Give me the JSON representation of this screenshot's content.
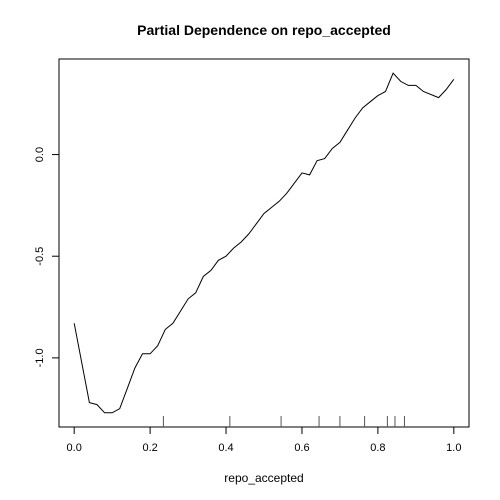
{
  "chart_data": {
    "type": "line",
    "title": "Partial Dependence on repo_accepted",
    "xlabel": "repo_accepted",
    "ylabel": "",
    "xlim": [
      -0.04,
      1.04
    ],
    "ylim": [
      -1.34,
      0.47
    ],
    "x_ticks": [
      "0.0",
      "0.2",
      "0.4",
      "0.6",
      "0.8",
      "1.0"
    ],
    "y_ticks": [
      "-1.0",
      "-0.5",
      "0.0"
    ],
    "x_tick_values": [
      0.0,
      0.2,
      0.4,
      0.6,
      0.8,
      1.0
    ],
    "y_tick_values": [
      -1.0,
      -0.5,
      0.0
    ],
    "rug_x": [
      0.235,
      0.41,
      0.545,
      0.645,
      0.7,
      0.765,
      0.825,
      0.845,
      0.87
    ],
    "grid": false,
    "series": [
      {
        "x": [
          0.0,
          0.04,
          0.06,
          0.08,
          0.1,
          0.12,
          0.14,
          0.16,
          0.18,
          0.2,
          0.22,
          0.24,
          0.26,
          0.28,
          0.3,
          0.32,
          0.34,
          0.36,
          0.38,
          0.4,
          0.42,
          0.44,
          0.46,
          0.48,
          0.5,
          0.52,
          0.54,
          0.56,
          0.6,
          0.62,
          0.64,
          0.66,
          0.68,
          0.7,
          0.72,
          0.74,
          0.76,
          0.78,
          0.8,
          0.82,
          0.84,
          0.86,
          0.88,
          0.9,
          0.92,
          0.96,
          0.98,
          1.0
        ],
        "values": [
          -0.83,
          -1.22,
          -1.23,
          -1.27,
          -1.27,
          -1.25,
          -1.15,
          -1.05,
          -0.98,
          -0.98,
          -0.94,
          -0.86,
          -0.83,
          -0.77,
          -0.71,
          -0.68,
          -0.6,
          -0.57,
          -0.52,
          -0.5,
          -0.46,
          -0.43,
          -0.39,
          -0.34,
          -0.29,
          -0.26,
          -0.23,
          -0.19,
          -0.09,
          -0.1,
          -0.03,
          -0.02,
          0.03,
          0.06,
          0.12,
          0.18,
          0.23,
          0.26,
          0.29,
          0.31,
          0.4,
          0.36,
          0.34,
          0.34,
          0.31,
          0.28,
          0.32,
          0.37
        ]
      }
    ]
  }
}
